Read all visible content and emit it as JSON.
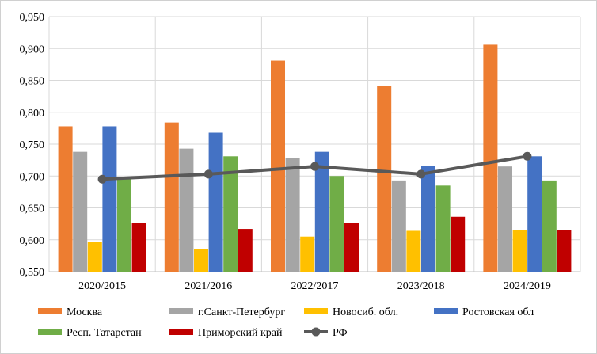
{
  "chart_data": {
    "type": "bar",
    "categories": [
      "2020/2015",
      "2021/2016",
      "2022/2017",
      "2023/2018",
      "2024/2019"
    ],
    "ylim": [
      0.55,
      0.95
    ],
    "yticks": [
      "0,550",
      "0,600",
      "0,650",
      "0,700",
      "0,750",
      "0,800",
      "0,850",
      "0,900",
      "0,950"
    ],
    "grid": true,
    "legend_position": "bottom",
    "series": [
      {
        "name": "Москва",
        "type": "bar",
        "color": "#ED7D31",
        "values": [
          0.778,
          0.784,
          0.881,
          0.841,
          0.906
        ]
      },
      {
        "name": "г.Санкт-Петербург",
        "type": "bar",
        "color": "#A5A5A5",
        "values": [
          0.738,
          0.743,
          0.728,
          0.693,
          0.715
        ]
      },
      {
        "name": "Новосиб. обл.",
        "type": "bar",
        "color": "#FFC000",
        "values": [
          0.597,
          0.586,
          0.605,
          0.614,
          0.615
        ]
      },
      {
        "name": "Ростовская обл",
        "type": "bar",
        "color": "#4472C4",
        "values": [
          0.778,
          0.768,
          0.738,
          0.716,
          0.731
        ]
      },
      {
        "name": "Респ. Татарстан",
        "type": "bar",
        "color": "#70AD47",
        "values": [
          0.697,
          0.731,
          0.7,
          0.685,
          0.693
        ]
      },
      {
        "name": "Приморский край",
        "type": "bar",
        "color": "#C00000",
        "values": [
          0.626,
          0.617,
          0.627,
          0.636,
          0.615
        ]
      },
      {
        "name": "РФ",
        "type": "line",
        "color": "#595959",
        "values": [
          0.695,
          0.703,
          0.715,
          0.703,
          0.731
        ]
      }
    ]
  }
}
